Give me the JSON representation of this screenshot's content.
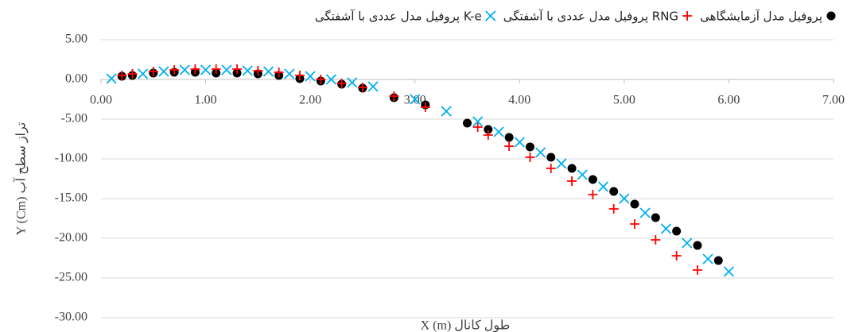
{
  "chart_data": {
    "type": "scatter",
    "xlabel": "X (m) طول کانال",
    "ylabel": "Y (Cm) تراز سطح آب",
    "xlim": [
      0,
      7
    ],
    "xticks": [
      {
        "value": 0,
        "label": "0.00"
      },
      {
        "value": 1,
        "label": "1.00"
      },
      {
        "value": 2,
        "label": "2.00"
      },
      {
        "value": 3,
        "label": "3.00"
      },
      {
        "value": 4,
        "label": "4.00"
      },
      {
        "value": 5,
        "label": "5.00"
      },
      {
        "value": 6,
        "label": "6.00"
      },
      {
        "value": 7,
        "label": "7.00"
      }
    ],
    "ylim": [
      -30,
      5
    ],
    "yticks": [
      {
        "value": 5,
        "label": "5.00"
      },
      {
        "value": 0,
        "label": "0.00"
      },
      {
        "value": -5,
        "label": "-5.00"
      },
      {
        "value": -10,
        "label": "-10.00"
      },
      {
        "value": -15,
        "label": "-15.00"
      },
      {
        "value": -20,
        "label": "-20.00"
      },
      {
        "value": -25,
        "label": "-25.00"
      },
      {
        "value": -30,
        "label": "-30.00"
      }
    ],
    "grid": true,
    "legend": "top",
    "series": [
      {
        "name": "پروفیل مدل آزمایشگاهی",
        "marker": "circle",
        "color": "#000000",
        "x": [
          0.2,
          0.3,
          0.5,
          0.7,
          0.9,
          1.1,
          1.3,
          1.5,
          1.7,
          1.9,
          2.1,
          2.3,
          2.5,
          2.8,
          3.1,
          3.5,
          3.7,
          3.9,
          4.1,
          4.3,
          4.5,
          4.7,
          4.9,
          5.1,
          5.3,
          5.5,
          5.7,
          5.9
        ],
        "values": [
          0.4,
          0.5,
          0.8,
          0.9,
          0.9,
          0.8,
          0.8,
          0.7,
          0.5,
          0.1,
          -0.2,
          -0.6,
          -1.1,
          -2.3,
          -3.2,
          -5.5,
          -6.3,
          -7.3,
          -8.5,
          -9.8,
          -11.2,
          -12.6,
          -14.1,
          -15.7,
          -17.4,
          -19.1,
          -20.9,
          -22.8
        ]
      },
      {
        "name": "پروفیل مدل عددی با آشفتگی RNG",
        "marker": "plus",
        "color": "#ff0000",
        "x": [
          0.2,
          0.3,
          0.5,
          0.7,
          0.9,
          1.1,
          1.3,
          1.5,
          1.7,
          1.9,
          2.1,
          2.3,
          2.5,
          2.8,
          3.1,
          3.6,
          3.7,
          3.9,
          4.1,
          4.3,
          4.5,
          4.7,
          4.9,
          5.1,
          5.3,
          5.5,
          5.7
        ],
        "values": [
          0.5,
          0.7,
          1.0,
          1.2,
          1.3,
          1.3,
          1.3,
          1.1,
          0.9,
          0.5,
          0.0,
          -0.5,
          -1.0,
          -2.1,
          -3.5,
          -6.0,
          -7.0,
          -8.4,
          -9.8,
          -11.2,
          -12.8,
          -14.5,
          -16.3,
          -18.2,
          -20.2,
          -22.2,
          -24.0
        ]
      },
      {
        "name": "پروفیل مدل عددی با آشفتگی K-e",
        "marker": "cross",
        "color": "#00b0f0",
        "x": [
          0.1,
          0.4,
          0.6,
          0.8,
          1.0,
          1.2,
          1.4,
          1.6,
          1.8,
          2.0,
          2.2,
          2.4,
          2.6,
          3.0,
          3.3,
          3.6,
          3.8,
          4.0,
          4.2,
          4.4,
          4.6,
          4.8,
          5.0,
          5.2,
          5.4,
          5.6,
          5.8,
          6.0
        ],
        "values": [
          0.1,
          0.7,
          1.0,
          1.2,
          1.2,
          1.2,
          1.1,
          1.0,
          0.7,
          0.4,
          0.0,
          -0.4,
          -0.9,
          -2.5,
          -4.0,
          -5.3,
          -6.6,
          -7.9,
          -9.2,
          -10.6,
          -12.0,
          -13.5,
          -15.0,
          -16.8,
          -18.8,
          -20.6,
          -22.6,
          -24.2
        ]
      }
    ]
  }
}
